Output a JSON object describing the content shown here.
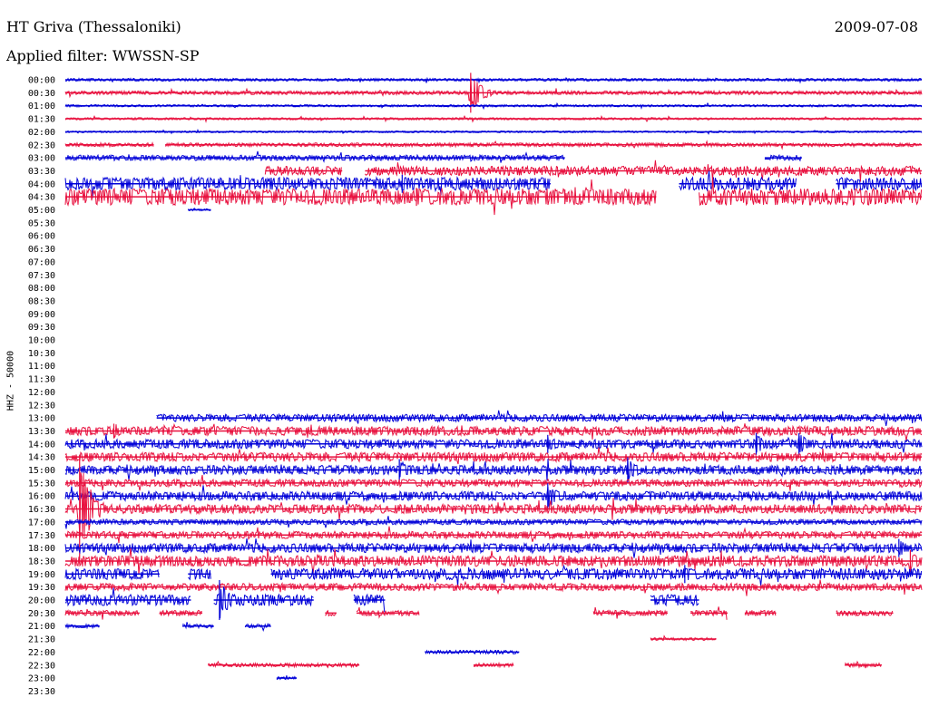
{
  "header": {
    "station": "HT Griva (Thessaloniki)",
    "date": "2009-07-08",
    "filter": "Applied filter: WWSSN-SP",
    "channel": "HHZ - 50000"
  },
  "colors": {
    "even_row": "#0000d8",
    "odd_row": "#e8103e"
  },
  "chart_data": {
    "type": "line",
    "title": "HT Griva (Thessaloniki)",
    "subtitle": "Applied filter: WWSSN-SP",
    "ylabel": "HHZ - 50000",
    "xlabel": "",
    "x_unit": "minutes within 30-minute row",
    "x_range": [
      0,
      30
    ],
    "rows": [
      "00:00",
      "00:30",
      "01:00",
      "01:30",
      "02:00",
      "02:30",
      "03:00",
      "03:30",
      "04:00",
      "04:30",
      "05:00",
      "05:30",
      "06:00",
      "06:30",
      "07:00",
      "07:30",
      "08:00",
      "08:30",
      "09:00",
      "09:30",
      "10:00",
      "10:30",
      "11:00",
      "11:30",
      "12:00",
      "12:30",
      "13:00",
      "13:30",
      "14:00",
      "14:30",
      "15:00",
      "15:30",
      "16:00",
      "16:30",
      "17:00",
      "17:30",
      "18:00",
      "18:30",
      "19:00",
      "19:30",
      "20:00",
      "20:30",
      "21:00",
      "21:30",
      "22:00",
      "22:30",
      "23:00",
      "23:30"
    ],
    "segments": [
      [
        [
          0,
          30
        ]
      ],
      [
        [
          0,
          30
        ]
      ],
      [
        [
          0,
          30
        ]
      ],
      [
        [
          0,
          30
        ]
      ],
      [
        [
          0,
          30
        ]
      ],
      [
        [
          0,
          3.1
        ],
        [
          3.5,
          30
        ]
      ],
      [
        [
          0,
          17.5
        ],
        [
          24.5,
          25.8
        ]
      ],
      [
        [
          7,
          9.7
        ],
        [
          10.5,
          30
        ]
      ],
      [
        [
          0,
          17
        ],
        [
          21.5,
          25.6
        ],
        [
          27,
          30
        ]
      ],
      [
        [
          0,
          20.7
        ],
        [
          22.2,
          30
        ]
      ],
      [
        [
          4.3,
          5.1
        ]
      ],
      [],
      [],
      [],
      [],
      [],
      [],
      [],
      [],
      [],
      [],
      [],
      [],
      [],
      [],
      [],
      [
        [
          3.2,
          30
        ]
      ],
      [
        [
          0,
          30
        ]
      ],
      [
        [
          0,
          30
        ]
      ],
      [
        [
          0,
          30
        ]
      ],
      [
        [
          0,
          30
        ]
      ],
      [
        [
          0,
          30
        ]
      ],
      [
        [
          0,
          30
        ]
      ],
      [
        [
          0,
          30
        ]
      ],
      [
        [
          0,
          30
        ]
      ],
      [
        [
          0,
          30
        ]
      ],
      [
        [
          0,
          30
        ]
      ],
      [
        [
          0,
          30
        ]
      ],
      [
        [
          0,
          3.3
        ],
        [
          4.3,
          5.1
        ],
        [
          7.2,
          30
        ]
      ],
      [
        [
          0,
          30
        ]
      ],
      [
        [
          0,
          4.4
        ],
        [
          5.2,
          8.7
        ],
        [
          10.1,
          11.2
        ],
        [
          20.5,
          22.2
        ]
      ],
      [
        [
          0,
          2.6
        ],
        [
          3.3,
          4.8
        ],
        [
          9.1,
          9.5
        ],
        [
          10.2,
          12.4
        ],
        [
          18.5,
          21.1
        ],
        [
          21.9,
          23.2
        ],
        [
          23.8,
          24.9
        ],
        [
          27,
          29
        ]
      ],
      [
        [
          0,
          1.2
        ],
        [
          4.1,
          5.2
        ],
        [
          6.3,
          7.2
        ]
      ],
      [
        [
          20.5,
          22.8
        ]
      ],
      [
        [
          12.6,
          15.9
        ]
      ],
      [
        [
          5.0,
          10.3
        ],
        [
          14.3,
          15.7
        ],
        [
          27.3,
          28.6
        ]
      ],
      [
        [
          7.4,
          8.1
        ]
      ],
      []
    ],
    "amplitude": [
      1.5,
      2,
      1.2,
      1.2,
      1,
      2,
      3,
      5,
      7,
      9,
      1,
      0,
      0,
      0,
      0,
      0,
      0,
      0,
      0,
      0,
      0,
      0,
      0,
      0,
      0,
      0,
      4,
      5,
      5,
      5,
      5,
      4,
      5,
      5,
      3,
      4,
      5,
      6,
      6,
      4,
      6,
      3,
      2,
      1.5,
      2,
      2,
      1.5,
      0
    ],
    "events": [
      {
        "row": 1,
        "minute": 14.2,
        "amplitude": 22
      },
      {
        "row": 8,
        "minute": 11.8,
        "amplitude": 10
      },
      {
        "row": 9,
        "minute": 12.3,
        "amplitude": 10
      },
      {
        "row": 9,
        "minute": 17.5,
        "amplitude": 8
      },
      {
        "row": 27,
        "minute": 1.7,
        "amplitude": 8
      },
      {
        "row": 28,
        "minute": 16.9,
        "amplitude": 10
      },
      {
        "row": 28,
        "minute": 24.2,
        "amplitude": 12
      },
      {
        "row": 28,
        "minute": 25.7,
        "amplitude": 12
      },
      {
        "row": 30,
        "minute": 11.7,
        "amplitude": 12
      },
      {
        "row": 30,
        "minute": 19.7,
        "amplitude": 14
      },
      {
        "row": 32,
        "minute": 16.9,
        "amplitude": 14
      },
      {
        "row": 33,
        "minute": 0.5,
        "amplitude": 60
      },
      {
        "row": 36,
        "minute": 29.2,
        "amplitude": 10
      },
      {
        "row": 37,
        "minute": 29.6,
        "amplitude": 12
      },
      {
        "row": 38,
        "minute": 21.7,
        "amplitude": 10
      },
      {
        "row": 40,
        "minute": 5.4,
        "amplitude": 22
      }
    ]
  }
}
